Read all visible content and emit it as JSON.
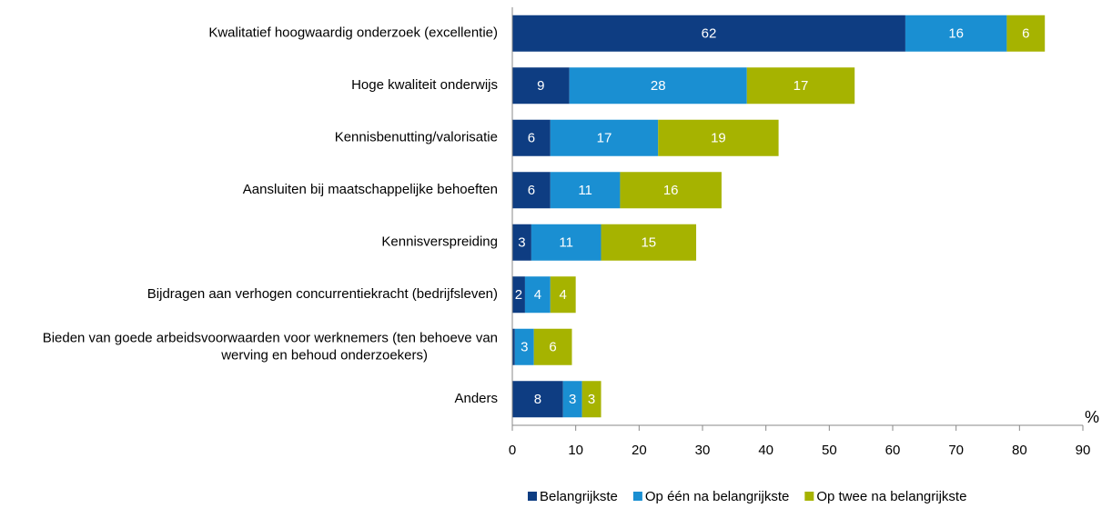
{
  "chart_data": {
    "type": "stacked-barh",
    "categories": [
      "Kwalitatief hoogwaardig onderzoek (excellentie)",
      "Hoge kwaliteit onderwijs",
      "Kennisbenutting/valorisatie",
      "Aansluiten bij maatschappelijke behoeften",
      "Kennisverspreiding",
      "Bijdragen aan verhogen concurrentiekracht (bedrijfsleven)",
      "Bieden van goede arbeidsvoorwaarden voor werknemers (ten behoeve van werving en behoud onderzoekers)",
      "Anders"
    ],
    "series": [
      {
        "name": "Belangrijkste",
        "color": "#0e3d82",
        "values": [
          62,
          9,
          6,
          6,
          3,
          2,
          0.4,
          8
        ]
      },
      {
        "name": "Op één na belangrijkste",
        "color": "#1a8fd2",
        "values": [
          16,
          28,
          17,
          11,
          11,
          4,
          3,
          3
        ]
      },
      {
        "name": "Op twee na belangrijkste",
        "color": "#a6b300",
        "values": [
          6,
          17,
          19,
          16,
          15,
          4,
          6,
          3
        ]
      }
    ],
    "xlim": [
      0,
      90
    ],
    "xticks": [
      0,
      10,
      20,
      30,
      40,
      50,
      60,
      70,
      80,
      90
    ],
    "xlabel": "%",
    "legend": "bottom-right"
  }
}
